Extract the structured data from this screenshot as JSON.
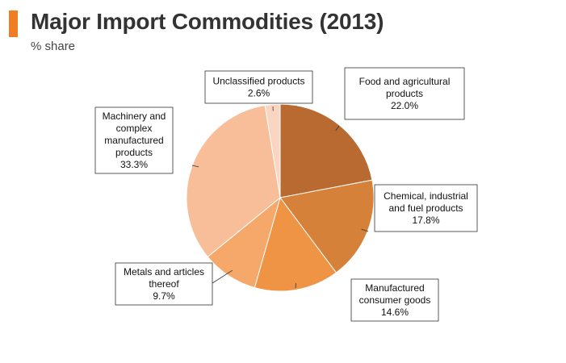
{
  "header": {
    "title": "Major Import Commodities (2013)",
    "subtitle": "% share",
    "accent_color": "#F07D24"
  },
  "chart_data": {
    "type": "pie",
    "title": "Major Import Commodities (2013)",
    "subtitle": "% share",
    "unit": "%",
    "start_angle_deg": 0,
    "direction": "clockwise",
    "slices": [
      {
        "label_lines": [
          "Food and agricultural",
          "products"
        ],
        "value_text": "22.0%",
        "value": 22.0,
        "color": "#B86A30"
      },
      {
        "label_lines": [
          "Chemical, industrial",
          "and fuel products"
        ],
        "value_text": "17.8%",
        "value": 17.8,
        "color": "#D5813A"
      },
      {
        "label_lines": [
          "Manufactured",
          "consumer goods"
        ],
        "value_text": "14.6%",
        "value": 14.6,
        "color": "#EE9444"
      },
      {
        "label_lines": [
          "Metals and articles",
          "thereof"
        ],
        "value_text": "9.7%",
        "value": 9.7,
        "color": "#F5A86A"
      },
      {
        "label_lines": [
          "Machinery and",
          "complex",
          "manufactured",
          "products"
        ],
        "value_text": "33.3%",
        "value": 33.3,
        "color": "#F8BE99"
      },
      {
        "label_lines": [
          "Unclassified products"
        ],
        "value_text": "2.6%",
        "value": 2.6,
        "color": "#FAD6C2"
      }
    ]
  }
}
